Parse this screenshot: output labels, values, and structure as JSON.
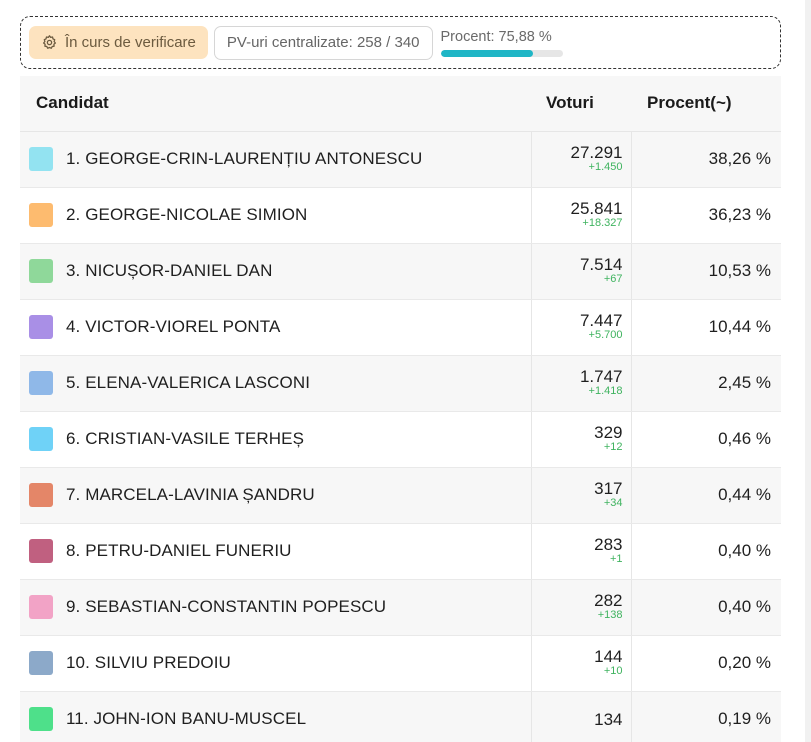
{
  "status": {
    "verify_label": "În curs de verificare",
    "pv_label": "PV-uri centralizate: 258 / 340",
    "progress_label": "Procent: 75,88 %",
    "progress_fraction": 0.7588,
    "progress_color": "#1fb6c6"
  },
  "table": {
    "headers": {
      "candidate": "Candidat",
      "votes": "Voturi",
      "percent": "Procent(~)"
    },
    "rows": [
      {
        "name": "1. GEORGE-CRIN-LAURENȚIU ANTONESCU",
        "votes": "27.291",
        "delta": "+1.450",
        "percent": "38,26 %",
        "color": "#93e3f1"
      },
      {
        "name": "2. GEORGE-NICOLAE SIMION",
        "votes": "25.841",
        "delta": "+18.327",
        "percent": "36,23 %",
        "color": "#fdbb6f"
      },
      {
        "name": "3. NICUȘOR-DANIEL DAN",
        "votes": "7.514",
        "delta": "+67",
        "percent": "10,53 %",
        "color": "#8fd89a"
      },
      {
        "name": "4. VICTOR-VIOREL PONTA",
        "votes": "7.447",
        "delta": "+5.700",
        "percent": "10,44 %",
        "color": "#a98fe6"
      },
      {
        "name": "5. ELENA-VALERICA LASCONI",
        "votes": "1.747",
        "delta": "+1.418",
        "percent": "2,45 %",
        "color": "#8fb8e8"
      },
      {
        "name": "6. CRISTIAN-VASILE TERHEȘ",
        "votes": "329",
        "delta": "+12",
        "percent": "0,46 %",
        "color": "#6fd2f7"
      },
      {
        "name": "7. MARCELA-LAVINIA ȘANDRU",
        "votes": "317",
        "delta": "+34",
        "percent": "0,44 %",
        "color": "#e48668"
      },
      {
        "name": "8. PETRU-DANIEL FUNERIU",
        "votes": "283",
        "delta": "+1",
        "percent": "0,40 %",
        "color": "#c06080"
      },
      {
        "name": "9. SEBASTIAN-CONSTANTIN POPESCU",
        "votes": "282",
        "delta": "+138",
        "percent": "0,40 %",
        "color": "#f2a3c6"
      },
      {
        "name": "10. SILVIU PREDOIU",
        "votes": "144",
        "delta": "+10",
        "percent": "0,20 %",
        "color": "#8ca9c9"
      },
      {
        "name": "11. JOHN-ION BANU-MUSCEL",
        "votes": "134",
        "delta": "",
        "percent": "0,19 %",
        "color": "#4ee08a"
      }
    ]
  }
}
